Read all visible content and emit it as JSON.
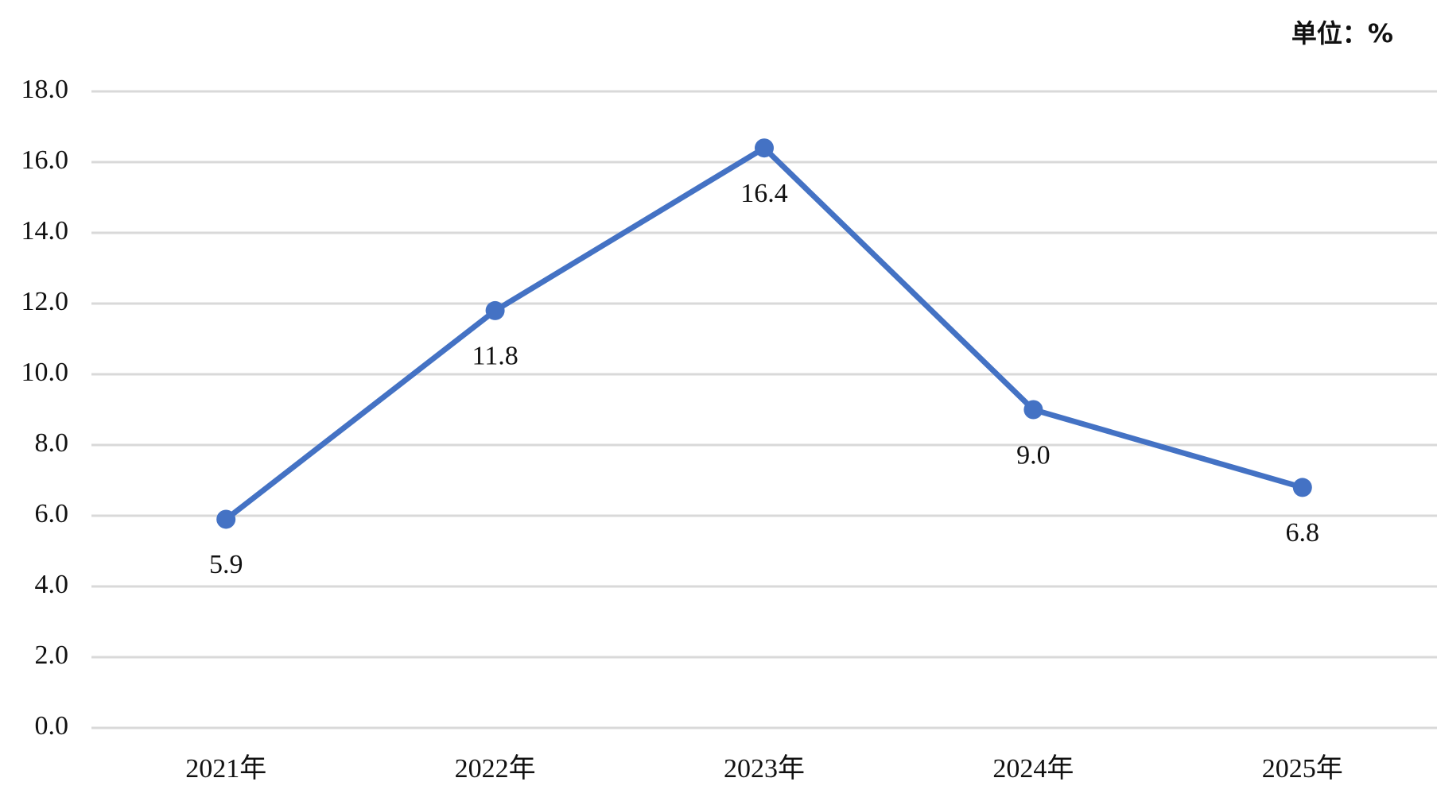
{
  "chart_data": {
    "type": "line",
    "unit_label": "单位：%",
    "categories": [
      "2021年",
      "2022年",
      "2023年",
      "2024年",
      "2025年"
    ],
    "values": [
      5.9,
      11.8,
      16.4,
      9.0,
      6.8
    ],
    "value_labels": [
      "5.9",
      "11.8",
      "16.4",
      "9.0",
      "6.8"
    ],
    "color": "#4472c4",
    "ylim": [
      0,
      18
    ],
    "yticks": [
      {
        "value": 0,
        "label": "0.0"
      },
      {
        "value": 2,
        "label": "2.0"
      },
      {
        "value": 4,
        "label": "4.0"
      },
      {
        "value": 6,
        "label": "6.0"
      },
      {
        "value": 8,
        "label": "8.0"
      },
      {
        "value": 10,
        "label": "10.0"
      },
      {
        "value": 12,
        "label": "12.0"
      },
      {
        "value": 14,
        "label": "14.0"
      },
      {
        "value": 16,
        "label": "16.0"
      },
      {
        "value": 18,
        "label": "18.0"
      }
    ],
    "grid": true
  }
}
